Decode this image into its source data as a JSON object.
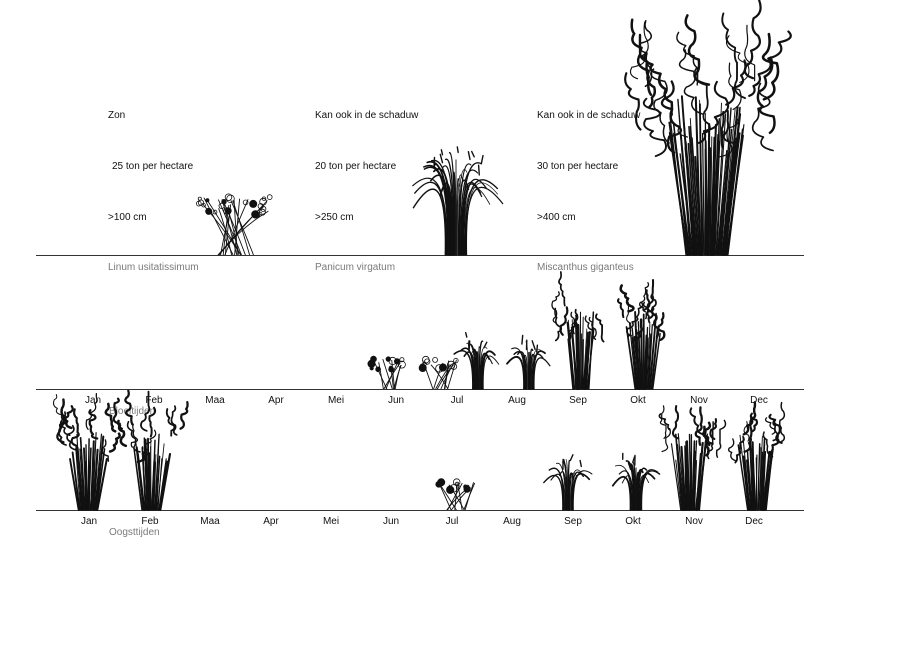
{
  "plants": [
    {
      "name": "Linum usitatissimum",
      "light": "Zon",
      "yield": "25 ton per hectare",
      "height": ">100 cm"
    },
    {
      "name": "Panicum virgatum",
      "light": "Kan ook in de schaduw",
      "yield": "20 ton per hectare",
      "height": ">250 cm"
    },
    {
      "name": "Miscanthus giganteus",
      "light": "Kan ook in de schaduw",
      "yield": "30 ton per hectare",
      "height": ">400 cm"
    }
  ],
  "timeline_bloom": {
    "label": "Bloeitijden",
    "months": [
      "Jan",
      "Feb",
      "Maa",
      "Apr",
      "Mei",
      "Jun",
      "Jul",
      "Aug",
      "Sep",
      "Okt",
      "Nov",
      "Dec"
    ]
  },
  "timeline_harvest": {
    "label": "Oogsttijden",
    "months": [
      "Jan",
      "Feb",
      "Maa",
      "Apr",
      "Mei",
      "Jun",
      "Jul",
      "Aug",
      "Sep",
      "Okt",
      "Nov",
      "Dec"
    ]
  },
  "colors": {
    "ink": "#111111",
    "label_gray": "#7a7a7a",
    "line": "#333333"
  }
}
